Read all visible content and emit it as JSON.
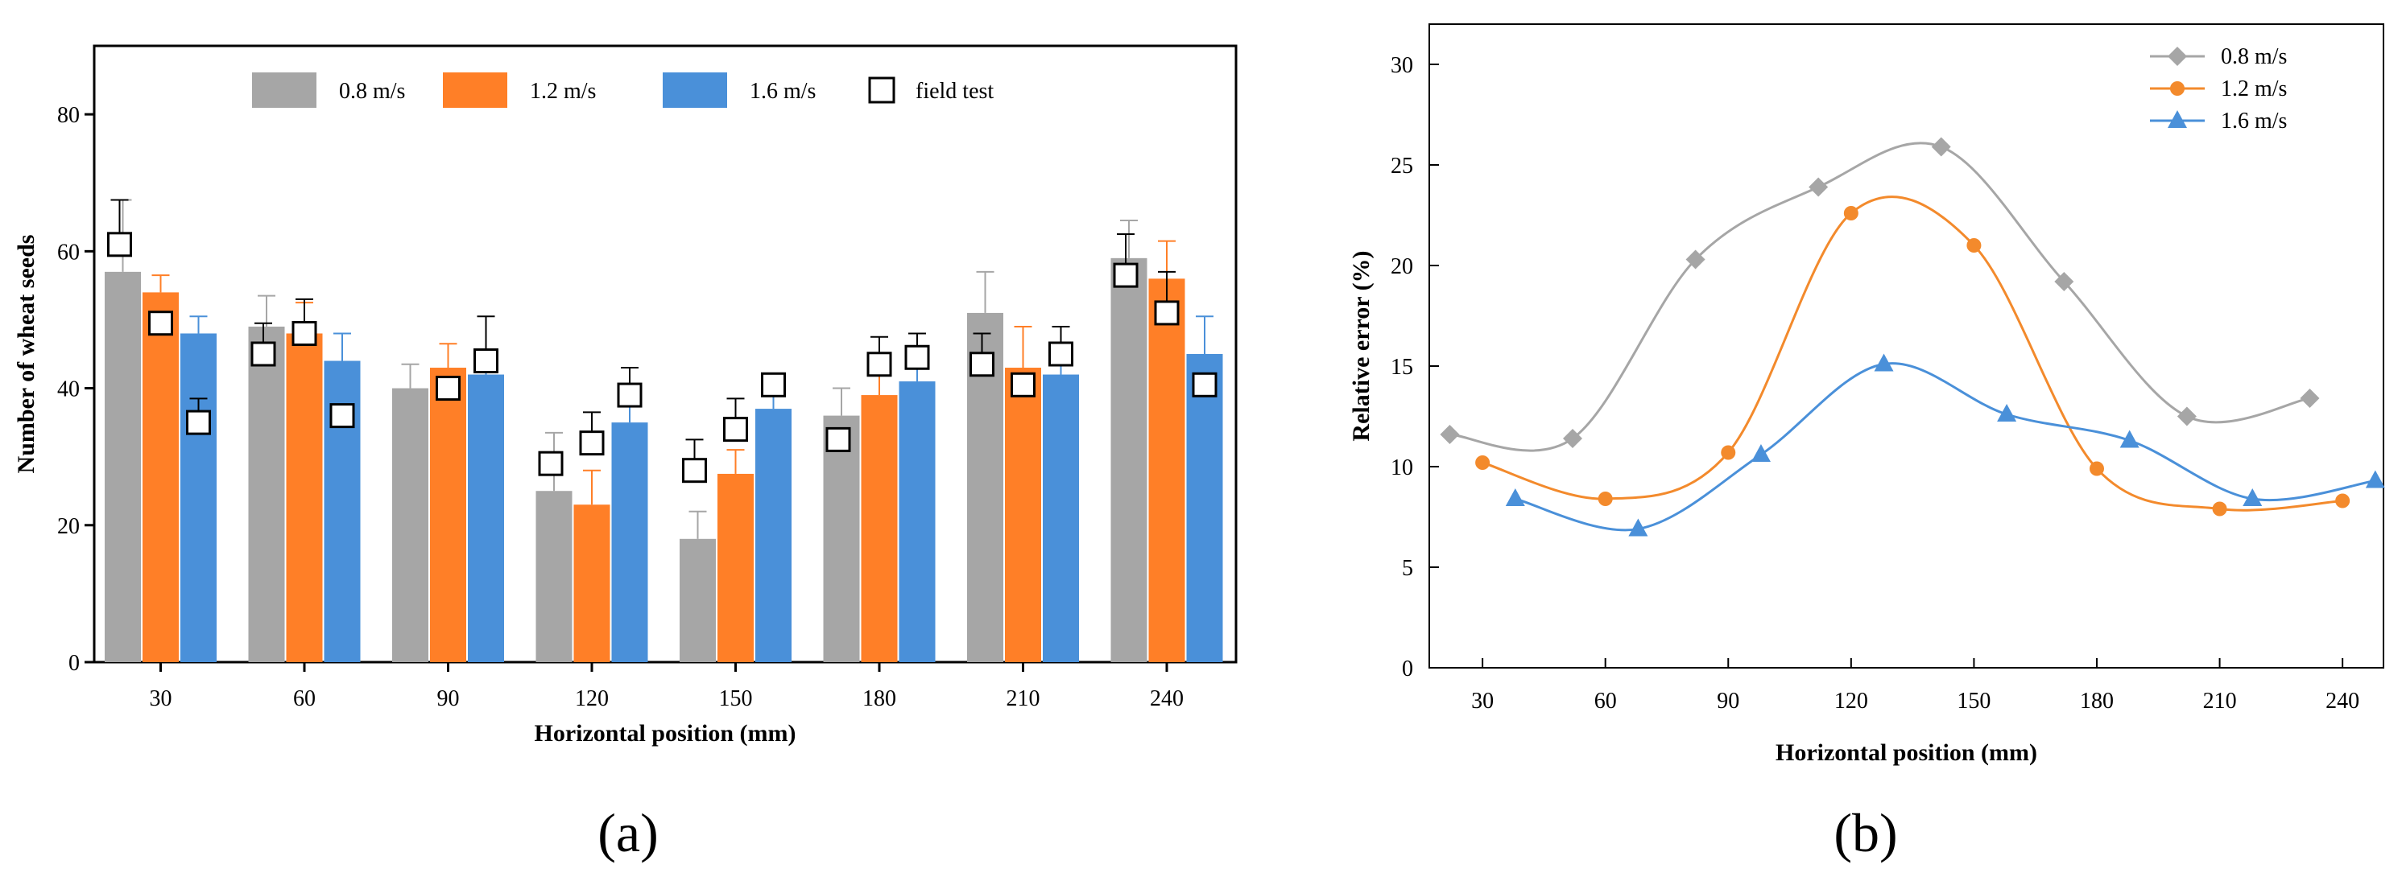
{
  "colors": {
    "gray": "#a6a6a6",
    "orange": "#ff7f27",
    "blue": "#4a90d9",
    "gray_line": "#a6a6a6",
    "orange_line": "#f38a2c",
    "blue_line": "#4a90d9"
  },
  "chart_data": [
    {
      "id": "a",
      "type": "bar",
      "panel_label": "(a)",
      "xlabel": "Horizontal position (mm)",
      "ylabel": "Number of wheat seeds",
      "ylim": [
        0,
        90
      ],
      "yticks": [
        0,
        20,
        40,
        60,
        80
      ],
      "categories": [
        "30",
        "60",
        "90",
        "120",
        "150",
        "180",
        "210",
        "240"
      ],
      "series": [
        {
          "name": "0.8 m/s",
          "color_key": "gray",
          "values": [
            57,
            49,
            40,
            25,
            18,
            36,
            51,
            59
          ],
          "errors": [
            10.5,
            4.5,
            3.5,
            8.5,
            4,
            4,
            6,
            5.5
          ]
        },
        {
          "name": "1.2 m/s",
          "color_key": "orange",
          "values": [
            54,
            48,
            43,
            23,
            27.5,
            39,
            43,
            56
          ],
          "errors": [
            2.5,
            4.5,
            3.5,
            5,
            3.5,
            3.5,
            6,
            5.5
          ]
        },
        {
          "name": "1.6 m/s",
          "color_key": "blue",
          "values": [
            48,
            44,
            42,
            35,
            37,
            41,
            42,
            45
          ],
          "errors": [
            2.5,
            4,
            3.5,
            4,
            4,
            3.5,
            3.5,
            5.5
          ]
        }
      ],
      "field_test": {
        "name": "field test",
        "values": [
          61,
          45,
          49.5,
          44,
          48,
          35,
          40,
          36,
          29,
          32,
          39,
          28,
          34,
          40.5,
          32.5,
          43.5,
          44.5,
          43.5,
          40.5,
          45,
          56.5,
          51,
          40.5
        ],
        "errors_up": [
          6.5,
          4.5,
          0,
          6.5,
          5,
          3.5,
          0,
          0,
          0,
          4.5,
          4,
          4.5,
          4.5,
          0,
          0,
          4,
          3.5,
          4.5,
          0,
          4,
          6,
          6,
          0
        ],
        "group_index": [
          0,
          1,
          0,
          2,
          1,
          0,
          2,
          1,
          3,
          3,
          3,
          4,
          4,
          4,
          5,
          5,
          5,
          6,
          6,
          6,
          7,
          7,
          7
        ],
        "series_index": [
          0,
          0,
          1,
          2,
          1,
          2,
          1,
          2,
          0,
          1,
          2,
          0,
          1,
          2,
          0,
          1,
          2,
          0,
          1,
          2,
          0,
          1,
          2
        ]
      }
    },
    {
      "id": "b",
      "type": "line",
      "panel_label": "(b)",
      "xlabel": "Horizontal position (mm)",
      "ylabel": "Relative error (%)",
      "xlim": [
        17,
        250
      ],
      "ylim": [
        0,
        32
      ],
      "xticks": [
        30,
        60,
        90,
        120,
        150,
        180,
        210,
        240
      ],
      "yticks": [
        0,
        5,
        10,
        15,
        20,
        25,
        30
      ],
      "series": [
        {
          "name": "0.8 m/s",
          "color_key": "gray_line",
          "marker": "diamond",
          "x": [
            22,
            52,
            82,
            112,
            142,
            172,
            202,
            232
          ],
          "y": [
            11.6,
            11.4,
            20.3,
            23.9,
            25.9,
            19.2,
            12.5,
            13.4
          ]
        },
        {
          "name": "1.2 m/s",
          "color_key": "orange_line",
          "marker": "circle",
          "x": [
            30,
            60,
            90,
            120,
            150,
            180,
            210,
            240
          ],
          "y": [
            10.2,
            8.4,
            10.7,
            22.6,
            21.0,
            9.9,
            7.9,
            8.3
          ]
        },
        {
          "name": "1.6 m/s",
          "color_key": "blue_line",
          "marker": "triangle",
          "x": [
            38,
            68,
            98,
            128,
            158,
            188,
            218,
            248
          ],
          "y": [
            8.4,
            6.9,
            10.6,
            15.1,
            12.6,
            11.3,
            8.4,
            9.3
          ]
        }
      ]
    }
  ]
}
